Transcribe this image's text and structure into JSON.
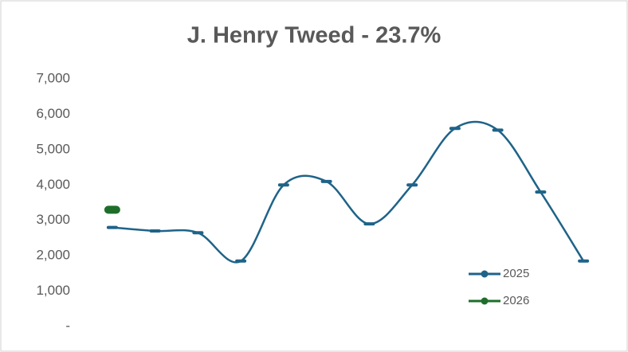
{
  "chart_data": {
    "type": "line",
    "title": "J. Henry Tweed - 23.7%",
    "categories": [
      null,
      null,
      null,
      null,
      null,
      null,
      null,
      null,
      null,
      null,
      null,
      null
    ],
    "series": [
      {
        "name": "2025",
        "color": "#1f6388",
        "values": [
          2800,
          2700,
          2650,
          1850,
          4000,
          4100,
          2900,
          4000,
          5600,
          5550,
          3800,
          1850
        ]
      },
      {
        "name": "2026",
        "color": "#1e6e2a",
        "values": [
          3300,
          null,
          null,
          null,
          null,
          null,
          null,
          null,
          null,
          null,
          null,
          null
        ]
      }
    ],
    "ylim": [
      0,
      7000
    ],
    "yticks": [
      {
        "value": 0,
        "label": "-"
      },
      {
        "value": 1000,
        "label": "1,000"
      },
      {
        "value": 2000,
        "label": "2,000"
      },
      {
        "value": 3000,
        "label": "3,000"
      },
      {
        "value": 4000,
        "label": "4,000"
      },
      {
        "value": 5000,
        "label": "5,000"
      },
      {
        "value": 6000,
        "label": "6,000"
      },
      {
        "value": 7000,
        "label": "7,000"
      }
    ],
    "smooth": true,
    "grid": false
  }
}
